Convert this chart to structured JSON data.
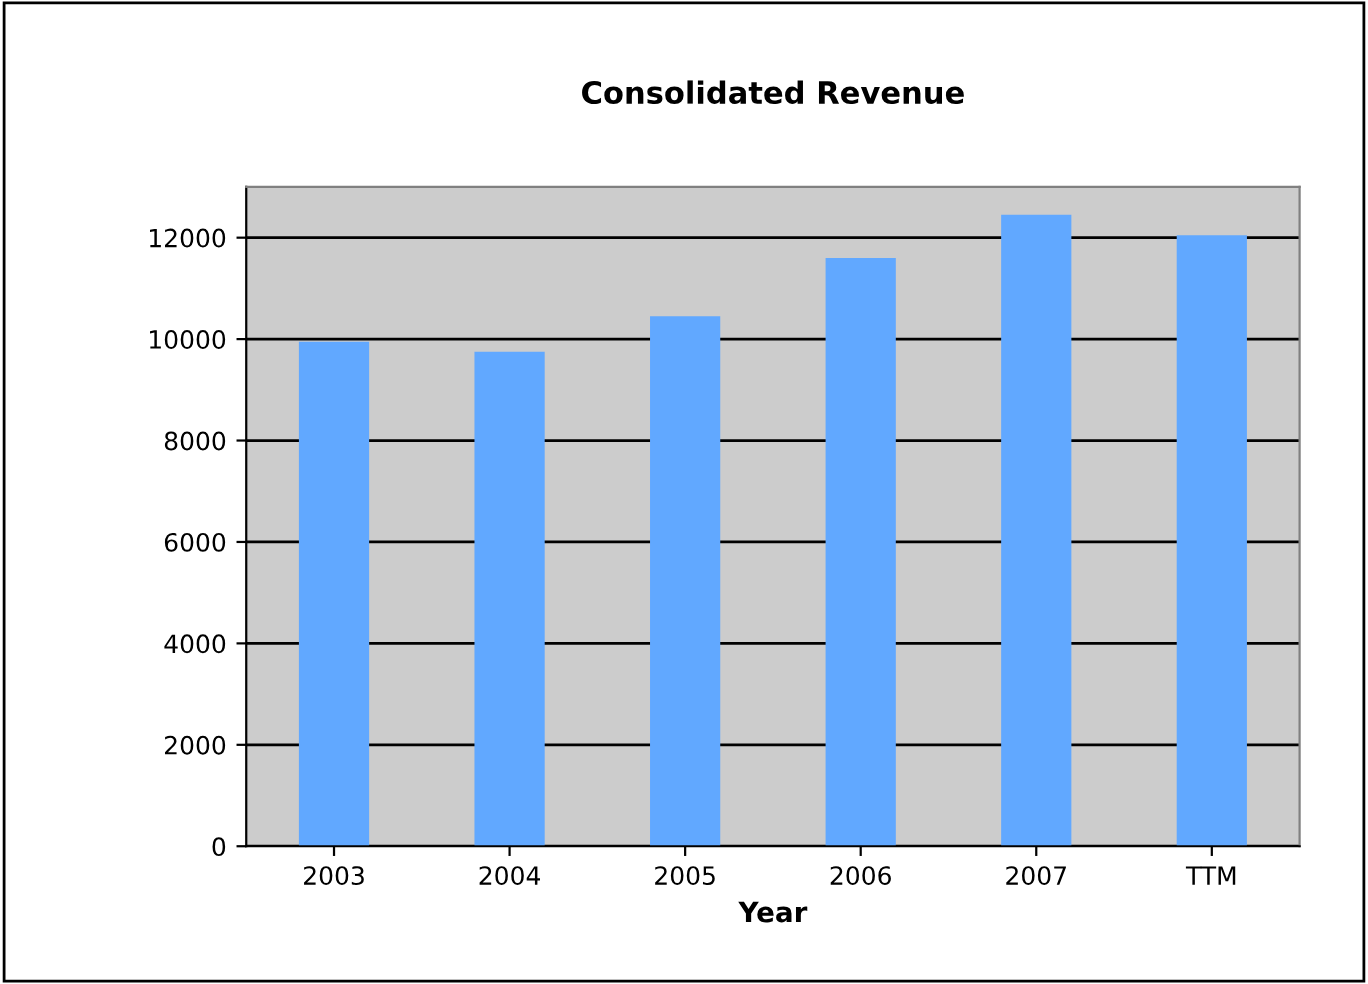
{
  "chart_data": {
    "type": "bar",
    "title": "Consolidated Revenue",
    "xlabel": "Year",
    "categories": [
      "2003",
      "2004",
      "2005",
      "2006",
      "2007",
      "TTM"
    ],
    "values": [
      9950,
      9750,
      10450,
      11600,
      12450,
      12050
    ],
    "color": "#61a8ff",
    "ylim": [
      0,
      13000
    ],
    "yticks": [
      0,
      2000,
      4000,
      6000,
      8000,
      10000,
      12000
    ],
    "grid": "y",
    "legend": false
  }
}
